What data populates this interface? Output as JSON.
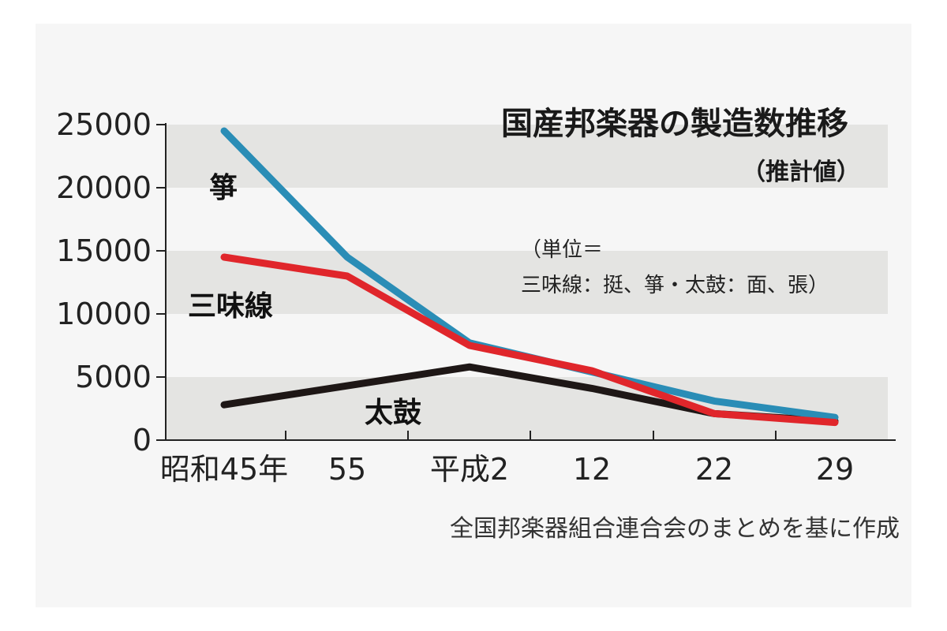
{
  "chart_data": {
    "type": "line",
    "title": "国産邦楽器の製造数推移",
    "subtitle": "（推計値）",
    "unit_note_line1": "（単位＝",
    "unit_note_line2": "三味線：挺、箏・太鼓：面、張）",
    "source": "全国邦楽器組合連合会のまとめを基に作成",
    "x_labels": [
      "昭和45年",
      "55",
      "平成2",
      "12",
      "22",
      "29"
    ],
    "x_years": [
      1970,
      1980,
      1990,
      2000,
      2010,
      2017
    ],
    "y_ticks": [
      "0",
      "5000",
      "10000",
      "15000",
      "20000",
      "25000"
    ],
    "y_tick_values": [
      0,
      5000,
      10000,
      15000,
      20000,
      25000
    ],
    "ylim": [
      0,
      25000
    ],
    "band_ranges": [
      [
        5000,
        0
      ],
      [
        15000,
        10000
      ],
      [
        25000,
        20000
      ]
    ],
    "grid": false,
    "series": [
      {
        "name": "箏",
        "color": "#2a8db6",
        "values": [
          24500,
          14500,
          7700,
          5400,
          3100,
          1800
        ]
      },
      {
        "name": "三味線",
        "color": "#e0262b",
        "values": [
          14500,
          13000,
          7500,
          5500,
          2100,
          1400
        ]
      },
      {
        "name": "太鼓",
        "color": "#1e1716",
        "values": [
          2800,
          null,
          5800,
          4100,
          2100,
          1500
        ]
      }
    ],
    "taiko_x_years": [
      1970,
      1990,
      2000,
      2010,
      2017
    ],
    "taiko_values": [
      2800,
      5800,
      4100,
      2100,
      1500
    ]
  }
}
